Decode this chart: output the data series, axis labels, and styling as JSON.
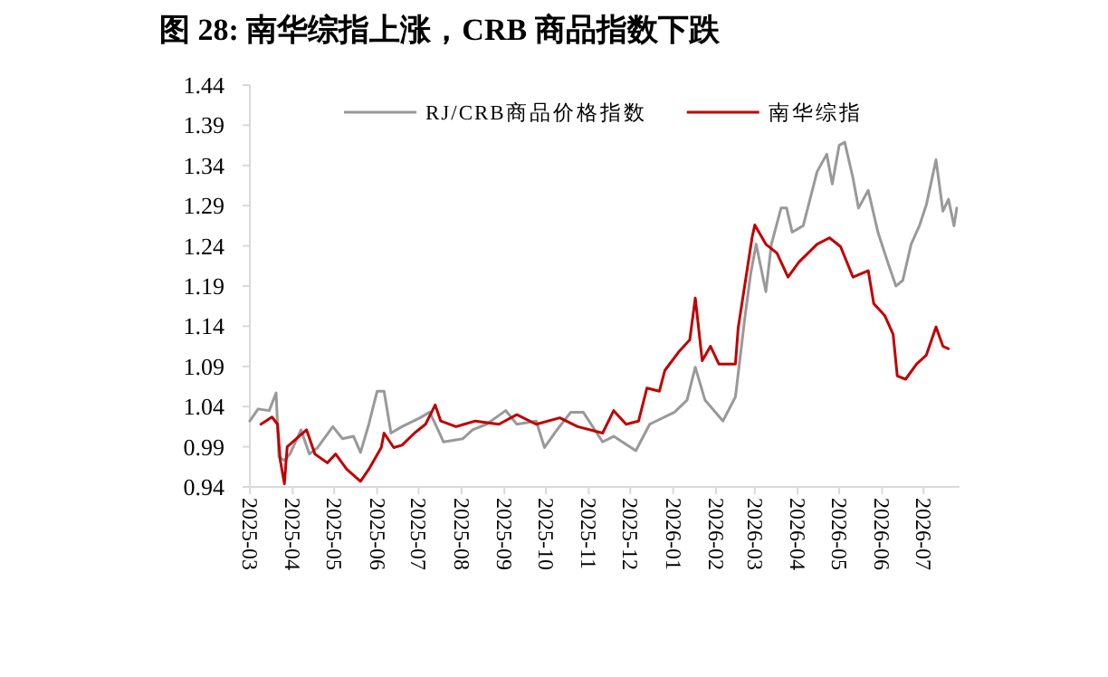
{
  "chart_data": {
    "type": "line",
    "title": "图 28:  南华综指上涨，CRB 商品指数下跌",
    "series": [
      {
        "name": "RJ/CRB商品价格指数",
        "color": "#999999",
        "x": [
          "2025-03-01",
          "2025-03-07",
          "2025-03-15",
          "2025-03-20",
          "2025-03-22",
          "2025-03-26",
          "2025-03-30",
          "2025-04-07",
          "2025-04-13",
          "2025-04-19",
          "2025-04-30",
          "2025-05-07",
          "2025-05-15",
          "2025-05-20",
          "2025-05-26",
          "2025-06-01",
          "2025-06-06",
          "2025-06-10",
          "2025-06-11",
          "2025-06-19",
          "2025-07-02",
          "2025-07-09",
          "2025-07-15",
          "2025-07-19",
          "2025-08-02",
          "2025-08-09",
          "2025-08-19",
          "2025-09-02",
          "2025-09-10",
          "2025-09-24",
          "2025-09-30",
          "2025-10-09",
          "2025-10-19",
          "2025-10-28",
          "2025-11-11",
          "2025-11-19",
          "2025-12-05",
          "2025-12-15",
          "2026-01-02",
          "2026-01-11",
          "2026-01-17",
          "2026-01-24",
          "2026-02-06",
          "2026-02-15",
          "2026-02-22",
          "2026-02-26",
          "2026-03-02",
          "2026-03-09",
          "2026-03-13",
          "2026-03-20",
          "2026-03-24",
          "2026-03-28",
          "2026-04-05",
          "2026-04-15",
          "2026-04-22",
          "2026-04-26",
          "2026-05-01",
          "2026-05-05",
          "2026-05-11",
          "2026-05-15",
          "2026-05-22",
          "2026-05-29",
          "2026-06-05",
          "2026-06-11",
          "2026-06-16",
          "2026-06-22",
          "2026-06-28",
          "2026-07-03",
          "2026-07-10",
          "2026-07-15",
          "2026-07-19",
          "2026-07-23",
          "2026-07-25"
        ],
        "values": [
          1.022,
          1.037,
          1.035,
          1.057,
          0.977,
          0.973,
          0.981,
          1.011,
          0.981,
          0.989,
          1.015,
          1.0,
          1.003,
          0.983,
          1.018,
          1.059,
          1.059,
          1.018,
          1.007,
          1.015,
          1.026,
          1.033,
          1.011,
          0.996,
          1.0,
          1.011,
          1.018,
          1.035,
          1.018,
          1.022,
          0.989,
          1.011,
          1.033,
          1.033,
          0.996,
          1.003,
          0.985,
          1.018,
          1.033,
          1.048,
          1.089,
          1.048,
          1.022,
          1.052,
          1.153,
          1.205,
          1.242,
          1.183,
          1.242,
          1.287,
          1.287,
          1.257,
          1.265,
          1.332,
          1.354,
          1.317,
          1.365,
          1.369,
          1.324,
          1.287,
          1.309,
          1.257,
          1.22,
          1.19,
          1.197,
          1.242,
          1.265,
          1.291,
          1.347,
          1.283,
          1.298,
          1.265,
          1.287
        ]
      },
      {
        "name": "南华综指",
        "color": "#c00000",
        "x": [
          "2025-03-09",
          "2025-03-17",
          "2025-03-21",
          "2025-03-23",
          "2025-03-26",
          "2025-03-28",
          "2025-04-11",
          "2025-04-17",
          "2025-04-26",
          "2025-05-02",
          "2025-05-10",
          "2025-05-20",
          "2025-05-26",
          "2025-06-04",
          "2025-06-06",
          "2025-06-13",
          "2025-06-19",
          "2025-06-28",
          "2025-07-06",
          "2025-07-13",
          "2025-07-17",
          "2025-07-28",
          "2025-08-11",
          "2025-08-28",
          "2025-09-10",
          "2025-09-24",
          "2025-10-11",
          "2025-10-24",
          "2025-11-11",
          "2025-11-19",
          "2025-11-28",
          "2025-12-07",
          "2025-12-13",
          "2025-12-22",
          "2025-12-26",
          "2026-01-05",
          "2026-01-13",
          "2026-01-17",
          "2026-01-22",
          "2026-01-28",
          "2026-02-03",
          "2026-02-15",
          "2026-02-17",
          "2026-02-23",
          "2026-02-27",
          "2026-03-01",
          "2026-03-09",
          "2026-03-17",
          "2026-03-25",
          "2026-04-02",
          "2026-04-15",
          "2026-04-24",
          "2026-05-02",
          "2026-05-11",
          "2026-05-22",
          "2026-05-26",
          "2026-06-03",
          "2026-06-09",
          "2026-06-12",
          "2026-06-18",
          "2026-06-26",
          "2026-07-03",
          "2026-07-10",
          "2026-07-15",
          "2026-07-19"
        ],
        "values": [
          1.018,
          1.027,
          1.018,
          0.973,
          0.944,
          0.99,
          1.011,
          0.981,
          0.97,
          0.981,
          0.962,
          0.947,
          0.962,
          0.989,
          1.007,
          0.989,
          0.992,
          1.007,
          1.018,
          1.042,
          1.022,
          1.015,
          1.022,
          1.018,
          1.03,
          1.018,
          1.026,
          1.015,
          1.007,
          1.035,
          1.018,
          1.022,
          1.063,
          1.059,
          1.085,
          1.108,
          1.123,
          1.175,
          1.097,
          1.115,
          1.093,
          1.093,
          1.138,
          1.205,
          1.25,
          1.266,
          1.242,
          1.231,
          1.201,
          1.22,
          1.242,
          1.25,
          1.239,
          1.201,
          1.209,
          1.168,
          1.153,
          1.13,
          1.078,
          1.074,
          1.093,
          1.104,
          1.139,
          1.115,
          1.112
        ]
      }
    ],
    "xlim": [
      "2025-03-01",
      "2026-07-27"
    ],
    "xticks": [
      "2025-03",
      "2025-04",
      "2025-05",
      "2025-06",
      "2025-07",
      "2025-08",
      "2025-09",
      "2025-10",
      "2025-11",
      "2025-12",
      "2026-01",
      "2026-02",
      "2026-03",
      "2026-04",
      "2026-05",
      "2026-06",
      "2026-07"
    ],
    "ylim": [
      0.94,
      1.44
    ],
    "yticks": [
      0.94,
      0.99,
      1.04,
      1.09,
      1.14,
      1.19,
      1.24,
      1.29,
      1.34,
      1.39,
      1.44
    ],
    "legend": "top",
    "grid": false,
    "marker": "none",
    "line_style": "solid"
  }
}
